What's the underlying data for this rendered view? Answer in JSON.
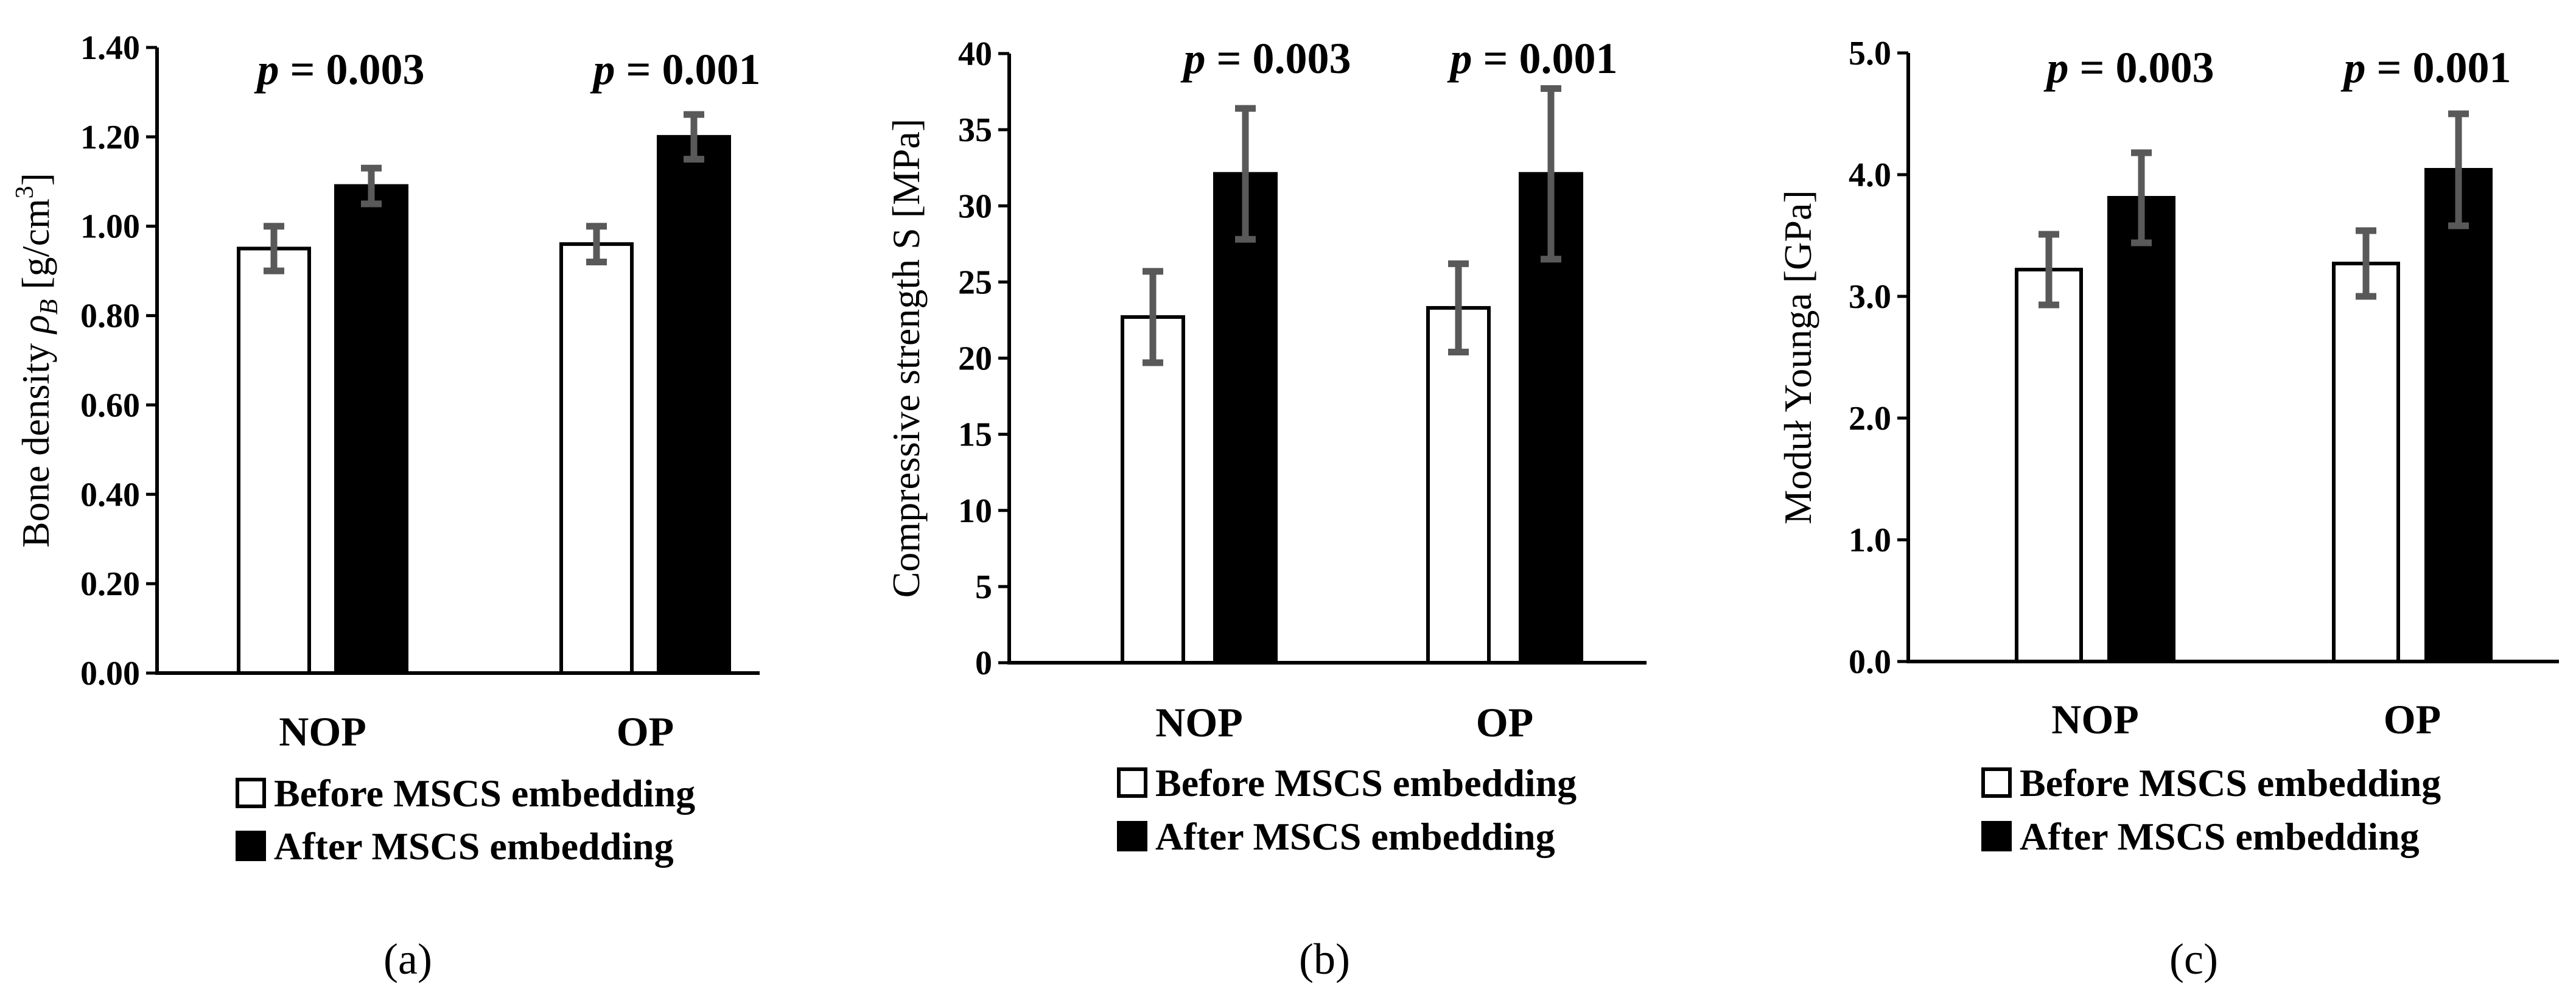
{
  "chart_data": [
    {
      "type": "bar",
      "panel_label": "(a)",
      "categories": [
        "NOP",
        "OP"
      ],
      "ylabel": "Bone density ρB [g/cm3]",
      "ylabel_parts": {
        "pre": "Bone density ",
        "symbol": "ρ",
        "sub": "B",
        "mid": " [g/cm",
        "sup": "3",
        "post": "]"
      },
      "ylim": [
        0,
        1.4
      ],
      "ytick_step": 0.2,
      "ytick_labels": [
        "0.00",
        "0.20",
        "0.40",
        "0.60",
        "0.80",
        "1.00",
        "1.20",
        "1.40"
      ],
      "series": [
        {
          "name": "Before MSCS embedding",
          "color": "#ffffff",
          "values": [
            0.95,
            0.96
          ],
          "errors": [
            0.05,
            0.04
          ]
        },
        {
          "name": "After MSCS embedding",
          "color": "#000000",
          "values": [
            1.09,
            1.2
          ],
          "errors": [
            0.04,
            0.05
          ]
        }
      ],
      "annotations": [
        {
          "italic": "p",
          "text": " = 0.003"
        },
        {
          "italic": "p",
          "text": " = 0.001"
        }
      ],
      "legend": [
        "Before MSCS embedding",
        "After MSCS embedding"
      ]
    },
    {
      "type": "bar",
      "panel_label": "(b)",
      "categories": [
        "NOP",
        "OP"
      ],
      "ylabel": "Compressive strength S  [MPa]",
      "ylim": [
        0,
        40
      ],
      "ytick_step": 5,
      "ytick_labels": [
        "0",
        "5",
        "10",
        "15",
        "20",
        "25",
        "30",
        "35",
        "40"
      ],
      "series": [
        {
          "name": "Before MSCS embedding",
          "color": "#ffffff",
          "values": [
            22.7,
            23.3
          ],
          "errors": [
            3.0,
            2.9
          ]
        },
        {
          "name": "After MSCS embedding",
          "color": "#000000",
          "values": [
            32.1,
            32.1
          ],
          "errors": [
            4.3,
            5.6
          ]
        }
      ],
      "annotations": [
        {
          "italic": "p",
          "text": " = 0.003"
        },
        {
          "italic": "p",
          "text": " = 0.001"
        }
      ],
      "legend": [
        "Before MSCS embedding",
        "After MSCS embedding"
      ]
    },
    {
      "type": "bar",
      "panel_label": "(c)",
      "categories": [
        "NOP",
        "OP"
      ],
      "ylabel": "Moduł Younga [GPa]",
      "ylim": [
        0,
        5
      ],
      "ytick_step": 1,
      "ytick_labels": [
        "0.0",
        "1.0",
        "2.0",
        "3.0",
        "4.0",
        "5.0"
      ],
      "series": [
        {
          "name": "Before MSCS embedding",
          "color": "#ffffff",
          "values": [
            3.22,
            3.27
          ],
          "errors": [
            0.29,
            0.27
          ]
        },
        {
          "name": "After MSCS embedding",
          "color": "#000000",
          "values": [
            3.81,
            4.04
          ],
          "errors": [
            0.37,
            0.46
          ]
        }
      ],
      "annotations": [
        {
          "italic": "p",
          "text": " = 0.003"
        },
        {
          "italic": "p",
          "text": " = 0.001"
        }
      ],
      "legend": [
        "Before MSCS embedding",
        "After MSCS embedding"
      ]
    }
  ]
}
